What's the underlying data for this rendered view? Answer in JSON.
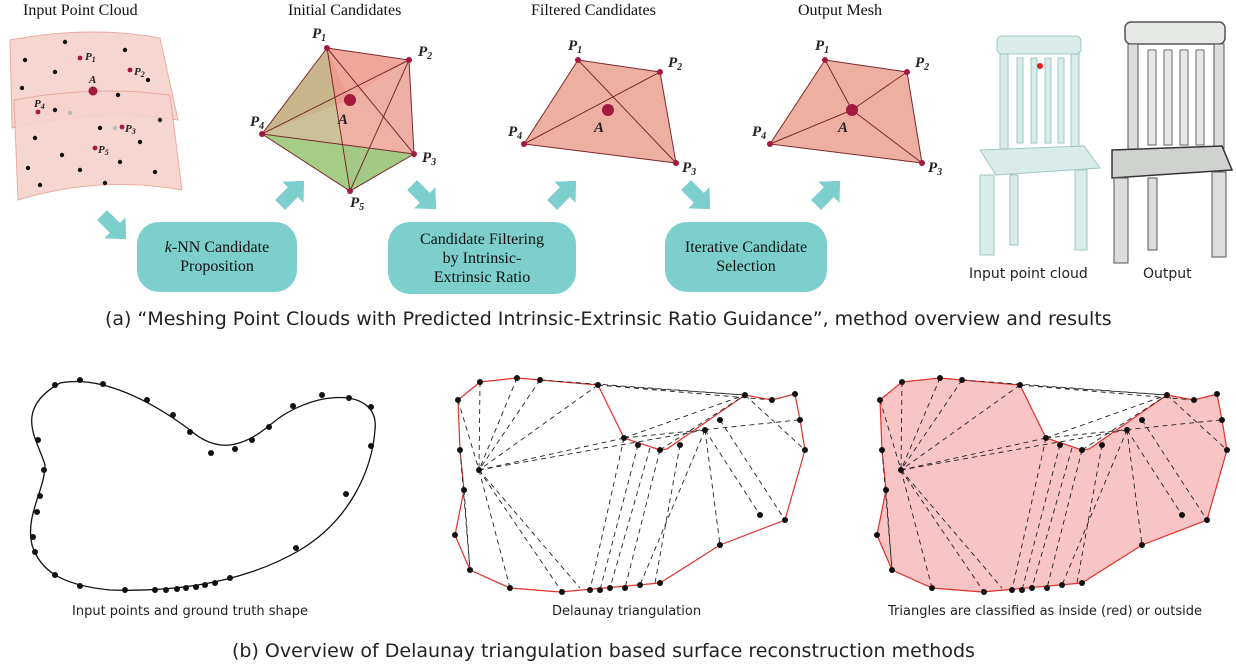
{
  "panel_a": {
    "stage_titles": [
      "Input Point Cloud",
      "Initial Candidates",
      "Filtered Candidates",
      "Output Mesh"
    ],
    "steps": [
      {
        "prefix": "k",
        "text": "-NN Candidate\nProposition"
      },
      {
        "prefix": "",
        "text": "Candidate Filtering\nby Intrinsic-\nExtrinsic Ratio"
      },
      {
        "prefix": "",
        "text": "Iterative Candidate\nSelection"
      }
    ],
    "points": {
      "p1": "P",
      "p2": "P",
      "p3": "P",
      "p4": "P",
      "p5": "P",
      "a": "A"
    },
    "result_labels": [
      "Input point cloud",
      "Output"
    ],
    "caption": "(a) “Meshing Point Clouds with Predicted Intrinsic-Extrinsic Ratio Guidance”, method overview and results",
    "colors": {
      "accent": "#7ccfcc",
      "point": "#a3193f",
      "face": "#eba79c",
      "face_green": "#9ec77e"
    }
  },
  "panel_b": {
    "sub_captions": [
      "Input points and ground truth shape",
      "Delaunay triangulation",
      "Triangles are classified as inside (red) or outside"
    ],
    "caption": "(b) Overview of Delaunay triangulation based surface reconstruction methods",
    "colors": {
      "boundary": "#e0312b",
      "fill": "#f9c4c4",
      "point": "#111111"
    }
  }
}
